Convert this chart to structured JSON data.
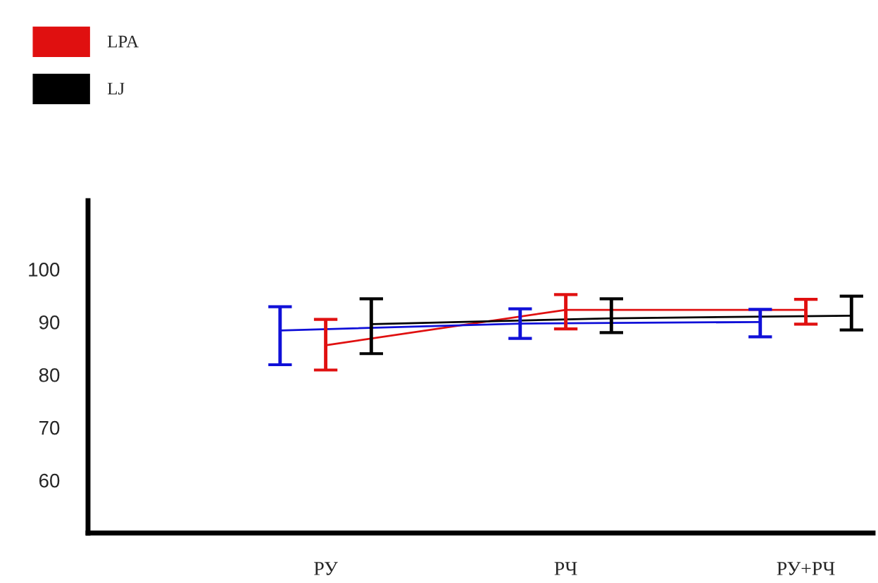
{
  "chart_data": {
    "type": "line",
    "categories": [
      "РУ",
      "РЧ",
      "РУ+РЧ"
    ],
    "series": [
      {
        "name": "LPA",
        "color": "#e01010",
        "values": [
          85.6,
          92.3,
          92.3
        ],
        "errors": [
          [
            80.9,
            90.5
          ],
          [
            88.7,
            95.2
          ],
          [
            89.6,
            94.3
          ]
        ]
      },
      {
        "color": "#1010d8",
        "values": [
          88.4,
          89.7,
          90.0
        ],
        "errors": [
          [
            81.9,
            92.9
          ],
          [
            86.9,
            92.5
          ],
          [
            87.2,
            92.4
          ]
        ]
      },
      {
        "name": "LJ",
        "color": "#000000",
        "values": [
          89.6,
          90.7,
          91.2
        ],
        "errors": [
          [
            84.0,
            94.4
          ],
          [
            88.0,
            94.4
          ],
          [
            88.5,
            94.9
          ]
        ]
      }
    ],
    "ylim": [
      50,
      113
    ],
    "yticks": [
      60,
      70,
      80,
      90,
      100
    ],
    "grid": false,
    "legend": "top left",
    "marker": "none",
    "line_style": "solid"
  }
}
